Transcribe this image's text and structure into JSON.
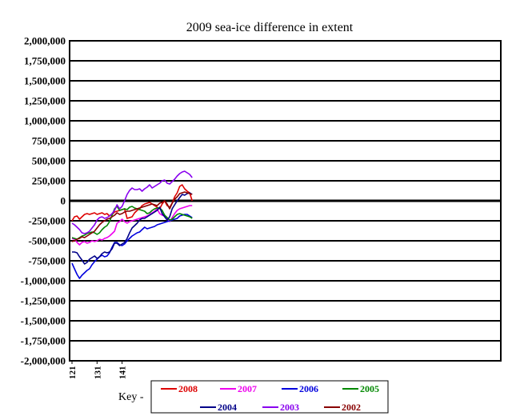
{
  "chart_data": {
    "type": "line",
    "title": "2009 sea-ice difference in extent",
    "xlabel": "",
    "ylabel": "",
    "ylim": [
      -2000000,
      2000000
    ],
    "xlim": [
      121,
      176
    ],
    "grid": true,
    "y_ticks": [
      "2,000,000",
      "1,750,000",
      "1,500,000",
      "1,250,000",
      "1,000,000",
      "750,000",
      "500,000",
      "250,000",
      "0",
      "-250,000",
      "-500,000",
      "-750,000",
      "-1,000,000",
      "-1,250,000",
      "-1,500,000",
      "-1,750,000",
      "-2,000,000"
    ],
    "x_ticks": [
      "121",
      "131",
      "141"
    ],
    "legend_prefix": "Key -",
    "legend_placement": "bottom",
    "series": [
      {
        "name": "2008",
        "color": "#dd0000",
        "x": [
          121,
          122,
          123,
          124,
          125,
          126,
          127,
          128,
          129,
          130,
          131,
          132,
          133,
          134,
          135,
          136,
          137,
          138,
          139,
          140,
          141,
          142,
          143,
          144,
          145,
          146,
          147,
          148,
          149,
          150,
          151,
          152,
          153,
          154,
          155,
          156,
          157,
          158,
          159,
          160,
          161,
          162,
          163,
          164,
          165,
          166,
          167,
          168,
          169
        ],
        "values": [
          -250000,
          -200000,
          -190000,
          -230000,
          -200000,
          -170000,
          -160000,
          -170000,
          -160000,
          -150000,
          -170000,
          -160000,
          -150000,
          -170000,
          -160000,
          -190000,
          -170000,
          -140000,
          -130000,
          -120000,
          -110000,
          -100000,
          -220000,
          -210000,
          -200000,
          -150000,
          -120000,
          -100000,
          -60000,
          -40000,
          -30000,
          -20000,
          -40000,
          -60000,
          -80000,
          -100000,
          -40000,
          0,
          -60000,
          -80000,
          -30000,
          50000,
          100000,
          180000,
          200000,
          150000,
          120000,
          100000,
          0
        ]
      },
      {
        "name": "2007",
        "color": "#ee00ee",
        "x": [
          121,
          122,
          123,
          124,
          125,
          126,
          127,
          128,
          129,
          130,
          131,
          132,
          133,
          134,
          135,
          136,
          137,
          138,
          139,
          140,
          141,
          142,
          143,
          144,
          145,
          146,
          147,
          148,
          149,
          150,
          151,
          152,
          153,
          154,
          155,
          156,
          157,
          158,
          159,
          160,
          161,
          162,
          163,
          164,
          165,
          166,
          167,
          168,
          169
        ],
        "values": [
          -470000,
          -480000,
          -520000,
          -550000,
          -520000,
          -510000,
          -530000,
          -520000,
          -500000,
          -510000,
          -500000,
          -480000,
          -490000,
          -470000,
          -460000,
          -440000,
          -410000,
          -380000,
          -280000,
          -260000,
          -230000,
          -260000,
          -280000,
          -260000,
          -250000,
          -240000,
          -230000,
          -220000,
          -210000,
          -200000,
          -190000,
          -170000,
          -150000,
          -130000,
          -100000,
          -160000,
          -180000,
          -190000,
          -220000,
          -260000,
          -210000,
          -160000,
          -120000,
          -100000,
          -90000,
          -80000,
          -70000,
          -60000,
          -60000
        ]
      },
      {
        "name": "2006",
        "color": "#0000dd",
        "x": [
          121,
          122,
          123,
          124,
          125,
          126,
          127,
          128,
          129,
          130,
          131,
          132,
          133,
          134,
          135,
          136,
          137,
          138,
          139,
          140,
          141,
          142,
          143,
          144,
          145,
          146,
          147,
          148,
          149,
          150,
          151,
          152,
          153,
          154,
          155,
          156,
          157,
          158,
          159,
          160,
          161,
          162,
          163,
          164,
          165,
          166,
          167,
          168,
          169
        ],
        "values": [
          -780000,
          -850000,
          -920000,
          -970000,
          -930000,
          -900000,
          -870000,
          -850000,
          -800000,
          -760000,
          -730000,
          -700000,
          -680000,
          -700000,
          -690000,
          -650000,
          -580000,
          -520000,
          -520000,
          -550000,
          -560000,
          -540000,
          -500000,
          -470000,
          -440000,
          -420000,
          -400000,
          -390000,
          -360000,
          -330000,
          -350000,
          -340000,
          -330000,
          -320000,
          -300000,
          -290000,
          -280000,
          -270000,
          -260000,
          -250000,
          -240000,
          -230000,
          -220000,
          -190000,
          -180000,
          -170000,
          -170000,
          -190000,
          -210000
        ]
      },
      {
        "name": "2005",
        "color": "#008800",
        "x": [
          121,
          122,
          123,
          124,
          125,
          126,
          127,
          128,
          129,
          130,
          131,
          132,
          133,
          134,
          135,
          136,
          137,
          138,
          139,
          140,
          141,
          142,
          143,
          144,
          145,
          146,
          147,
          148,
          149,
          150,
          151,
          152,
          153,
          154,
          155,
          156,
          157,
          158,
          159,
          160,
          161,
          162,
          163,
          164,
          165,
          166,
          167,
          168,
          169
        ],
        "values": [
          -460000,
          -470000,
          -480000,
          -460000,
          -440000,
          -430000,
          -410000,
          -400000,
          -390000,
          -400000,
          -420000,
          -400000,
          -360000,
          -330000,
          -310000,
          -260000,
          -180000,
          -100000,
          -70000,
          -120000,
          -110000,
          -100000,
          -110000,
          -80000,
          -70000,
          -90000,
          -100000,
          -110000,
          -120000,
          -130000,
          -160000,
          -150000,
          -120000,
          -100000,
          -90000,
          -90000,
          -120000,
          -180000,
          -210000,
          -240000,
          -230000,
          -200000,
          -170000,
          -160000,
          -170000,
          -180000,
          -190000,
          -200000,
          -220000
        ]
      },
      {
        "name": "2004",
        "color": "#000088",
        "x": [
          121,
          122,
          123,
          124,
          125,
          126,
          127,
          128,
          129,
          130,
          131,
          132,
          133,
          134,
          135,
          136,
          137,
          138,
          139,
          140,
          141,
          142,
          143,
          144,
          145,
          146,
          147,
          148,
          149,
          150,
          151,
          152,
          153,
          154,
          155,
          156,
          157,
          158,
          159,
          160,
          161,
          162,
          163,
          164,
          165,
          166,
          167,
          168,
          169
        ],
        "values": [
          -640000,
          -640000,
          -650000,
          -700000,
          -740000,
          -790000,
          -770000,
          -730000,
          -710000,
          -690000,
          -720000,
          -700000,
          -660000,
          -640000,
          -650000,
          -640000,
          -600000,
          -530000,
          -530000,
          -560000,
          -540000,
          -520000,
          -470000,
          -400000,
          -340000,
          -310000,
          -280000,
          -240000,
          -220000,
          -220000,
          -200000,
          -180000,
          -160000,
          -140000,
          -120000,
          -80000,
          -160000,
          -200000,
          -240000,
          -200000,
          -100000,
          -50000,
          0,
          40000,
          80000,
          70000,
          90000,
          100000,
          80000
        ]
      },
      {
        "name": "2003",
        "color": "#8800ee",
        "x": [
          121,
          122,
          123,
          124,
          125,
          126,
          127,
          128,
          129,
          130,
          131,
          132,
          133,
          134,
          135,
          136,
          137,
          138,
          139,
          140,
          141,
          142,
          143,
          144,
          145,
          146,
          147,
          148,
          149,
          150,
          151,
          152,
          153,
          154,
          155,
          156,
          157,
          158,
          159,
          160,
          161,
          162,
          163,
          164,
          165,
          166,
          167,
          168,
          169
        ],
        "values": [
          -280000,
          -300000,
          -330000,
          -360000,
          -400000,
          -410000,
          -400000,
          -380000,
          -340000,
          -300000,
          -240000,
          -210000,
          -200000,
          -220000,
          -210000,
          -190000,
          -160000,
          -120000,
          -50000,
          -100000,
          -70000,
          0,
          80000,
          130000,
          160000,
          140000,
          140000,
          150000,
          120000,
          150000,
          170000,
          200000,
          160000,
          180000,
          200000,
          220000,
          250000,
          260000,
          220000,
          210000,
          240000,
          270000,
          310000,
          340000,
          360000,
          370000,
          350000,
          330000,
          290000
        ]
      },
      {
        "name": "2002",
        "color": "#880000",
        "x": [
          121,
          122,
          123,
          124,
          125,
          126,
          127,
          128,
          129,
          130,
          131,
          132,
          133,
          134,
          135,
          136,
          137,
          138,
          139,
          140,
          141,
          142,
          143,
          144,
          145,
          146,
          147,
          148,
          149,
          150,
          151,
          152,
          153,
          154,
          155,
          156,
          157,
          158,
          159,
          160,
          161,
          162,
          163,
          164,
          165,
          166,
          167,
          168,
          169
        ],
        "values": [
          -510000,
          -500000,
          -480000,
          -470000,
          -450000,
          -460000,
          -440000,
          -420000,
          -400000,
          -380000,
          -340000,
          -300000,
          -270000,
          -250000,
          -230000,
          -220000,
          -200000,
          -180000,
          -150000,
          -170000,
          -160000,
          -140000,
          -130000,
          -130000,
          -120000,
          -110000,
          -100000,
          -90000,
          -80000,
          -70000,
          -60000,
          -50000,
          -40000,
          -50000,
          -60000,
          -30000,
          -20000,
          0,
          -40000,
          -100000,
          -30000,
          20000,
          50000,
          90000,
          100000,
          110000,
          100000,
          90000,
          80000
        ]
      }
    ]
  }
}
